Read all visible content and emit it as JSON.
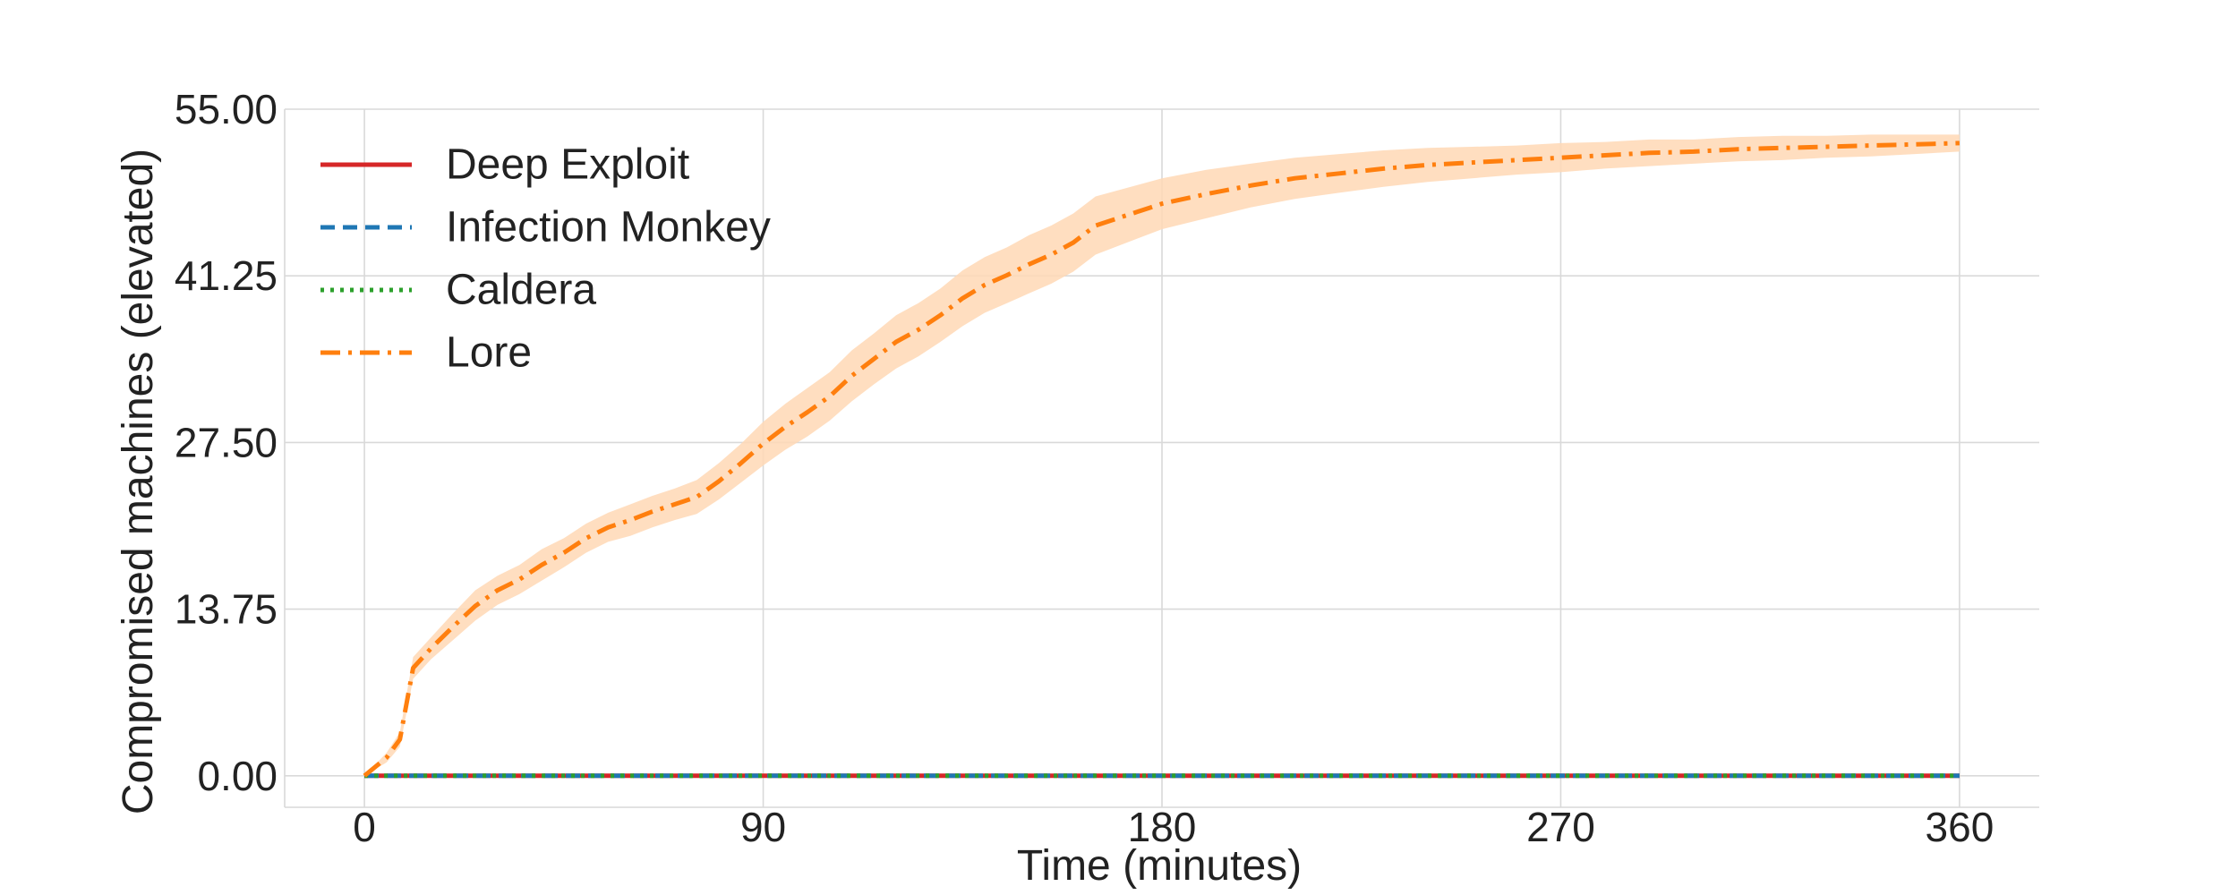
{
  "chart_data": {
    "type": "line",
    "title": "",
    "xlabel": "Time (minutes)",
    "ylabel": "Compromised machines (elevated)",
    "xlim": [
      -18,
      378
    ],
    "ylim": [
      -2.6,
      55.0
    ],
    "xticks": [
      0,
      90,
      180,
      270,
      360
    ],
    "xtick_labels": [
      "0",
      "90",
      "180",
      "270",
      "360"
    ],
    "yticks": [
      0,
      13.75,
      27.5,
      41.25,
      55.0
    ],
    "ytick_labels": [
      "0.00",
      "13.75",
      "27.50",
      "41.25",
      "55.00"
    ],
    "grid": true,
    "legend_position": "top-left",
    "colors": {
      "deep_exploit": "#d62728",
      "infection_monkey": "#1f77b4",
      "caldera": "#2ca02c",
      "lore": "#ff7f0e",
      "lore_band": "#ffd8b5",
      "grid": "#d9d9d9",
      "text": "#222222"
    },
    "series": [
      {
        "name": "Deep Exploit",
        "style": "solid",
        "x": [
          0,
          360
        ],
        "y": [
          0,
          0
        ]
      },
      {
        "name": "Infection Monkey",
        "style": "dashed",
        "x": [
          0,
          360
        ],
        "y": [
          0,
          0
        ]
      },
      {
        "name": "Caldera",
        "style": "dotted",
        "x": [
          0,
          360
        ],
        "y": [
          0,
          0
        ]
      },
      {
        "name": "Lore",
        "style": "dashdot",
        "x": [
          0,
          5,
          8,
          11,
          15,
          20,
          25,
          30,
          35,
          40,
          45,
          50,
          55,
          60,
          65,
          70,
          75,
          80,
          85,
          90,
          95,
          100,
          105,
          110,
          115,
          120,
          125,
          130,
          135,
          140,
          145,
          150,
          155,
          160,
          165,
          170,
          175,
          180,
          190,
          200,
          210,
          220,
          230,
          240,
          250,
          260,
          270,
          280,
          290,
          300,
          310,
          320,
          330,
          340,
          350,
          360
        ],
        "y": [
          0,
          1.5,
          3.0,
          8.9,
          10.5,
          12.3,
          14.0,
          15.3,
          16.2,
          17.4,
          18.4,
          19.6,
          20.5,
          21.1,
          21.8,
          22.4,
          23.0,
          24.3,
          25.8,
          27.4,
          28.8,
          30.0,
          31.3,
          33.0,
          34.4,
          35.8,
          36.8,
          38.0,
          39.4,
          40.5,
          41.3,
          42.2,
          43.0,
          44.0,
          45.4,
          46.0,
          46.6,
          47.2,
          48.0,
          48.7,
          49.3,
          49.7,
          50.1,
          50.4,
          50.6,
          50.8,
          51.0,
          51.2,
          51.4,
          51.5,
          51.7,
          51.8,
          51.9,
          52.0,
          52.1,
          52.2
        ],
        "ci_lower": [
          0,
          1.1,
          2.4,
          8.0,
          9.6,
          11.2,
          12.8,
          14.1,
          15.0,
          16.1,
          17.2,
          18.4,
          19.3,
          19.8,
          20.5,
          21.1,
          21.6,
          22.8,
          24.2,
          25.6,
          26.9,
          28.0,
          29.3,
          30.9,
          32.3,
          33.6,
          34.6,
          35.8,
          37.1,
          38.2,
          39.0,
          39.8,
          40.6,
          41.6,
          43.0,
          43.7,
          44.4,
          45.1,
          46.0,
          46.9,
          47.6,
          48.1,
          48.6,
          49.0,
          49.3,
          49.6,
          49.8,
          50.1,
          50.3,
          50.5,
          50.7,
          50.8,
          51.0,
          51.1,
          51.3,
          51.5
        ],
        "ci_upper": [
          0,
          1.9,
          3.6,
          9.8,
          11.4,
          13.4,
          15.3,
          16.5,
          17.4,
          18.7,
          19.6,
          20.8,
          21.7,
          22.4,
          23.1,
          23.7,
          24.4,
          25.8,
          27.4,
          29.2,
          30.7,
          32.0,
          33.3,
          35.1,
          36.5,
          38.0,
          39.0,
          40.2,
          41.7,
          42.8,
          43.6,
          44.6,
          45.4,
          46.4,
          47.8,
          48.3,
          48.8,
          49.3,
          50.0,
          50.5,
          51.0,
          51.3,
          51.6,
          51.8,
          51.9,
          52.0,
          52.2,
          52.3,
          52.5,
          52.5,
          52.7,
          52.8,
          52.8,
          52.9,
          52.9,
          52.9
        ]
      }
    ]
  }
}
